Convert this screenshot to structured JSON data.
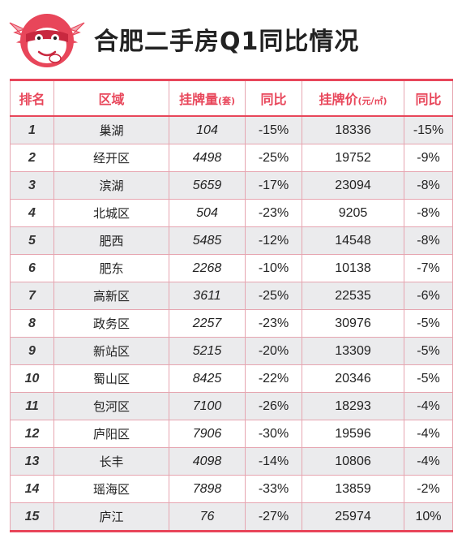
{
  "title": "合肥二手房Q1同比情况",
  "colors": {
    "accent": "#e8465a",
    "stripe": "#ebebed",
    "grid": "#e6a5b0"
  },
  "header_icon": "mascot-icon",
  "chart_data": {
    "type": "table",
    "columns": [
      {
        "label": "排名",
        "unit": ""
      },
      {
        "label": "区域",
        "unit": ""
      },
      {
        "label": "挂牌量",
        "unit": "(套)"
      },
      {
        "label": "同比",
        "unit": ""
      },
      {
        "label": "挂牌价",
        "unit": "(元/㎡)"
      },
      {
        "label": "同比",
        "unit": ""
      }
    ],
    "rows": [
      {
        "rank": "1",
        "district": "巢湖",
        "listings": "104",
        "listings_yoy": "-15%",
        "price": "18336",
        "price_yoy": "-15%"
      },
      {
        "rank": "2",
        "district": "经开区",
        "listings": "4498",
        "listings_yoy": "-25%",
        "price": "19752",
        "price_yoy": "-9%"
      },
      {
        "rank": "3",
        "district": "滨湖",
        "listings": "5659",
        "listings_yoy": "-17%",
        "price": "23094",
        "price_yoy": "-8%"
      },
      {
        "rank": "4",
        "district": "北城区",
        "listings": "504",
        "listings_yoy": "-23%",
        "price": "9205",
        "price_yoy": "-8%"
      },
      {
        "rank": "5",
        "district": "肥西",
        "listings": "5485",
        "listings_yoy": "-12%",
        "price": "14548",
        "price_yoy": "-8%"
      },
      {
        "rank": "6",
        "district": "肥东",
        "listings": "2268",
        "listings_yoy": "-10%",
        "price": "10138",
        "price_yoy": "-7%"
      },
      {
        "rank": "7",
        "district": "高新区",
        "listings": "3611",
        "listings_yoy": "-25%",
        "price": "22535",
        "price_yoy": "-6%"
      },
      {
        "rank": "8",
        "district": "政务区",
        "listings": "2257",
        "listings_yoy": "-23%",
        "price": "30976",
        "price_yoy": "-5%"
      },
      {
        "rank": "9",
        "district": "新站区",
        "listings": "5215",
        "listings_yoy": "-20%",
        "price": "13309",
        "price_yoy": "-5%"
      },
      {
        "rank": "10",
        "district": "蜀山区",
        "listings": "8425",
        "listings_yoy": "-22%",
        "price": "20346",
        "price_yoy": "-5%"
      },
      {
        "rank": "11",
        "district": "包河区",
        "listings": "7100",
        "listings_yoy": "-26%",
        "price": "18293",
        "price_yoy": "-4%"
      },
      {
        "rank": "12",
        "district": "庐阳区",
        "listings": "7906",
        "listings_yoy": "-30%",
        "price": "19596",
        "price_yoy": "-4%"
      },
      {
        "rank": "13",
        "district": "长丰",
        "listings": "4098",
        "listings_yoy": "-14%",
        "price": "10806",
        "price_yoy": "-4%"
      },
      {
        "rank": "14",
        "district": "瑶海区",
        "listings": "7898",
        "listings_yoy": "-33%",
        "price": "13859",
        "price_yoy": "-2%"
      },
      {
        "rank": "15",
        "district": "庐江",
        "listings": "76",
        "listings_yoy": "-27%",
        "price": "25974",
        "price_yoy": "10%"
      }
    ]
  }
}
